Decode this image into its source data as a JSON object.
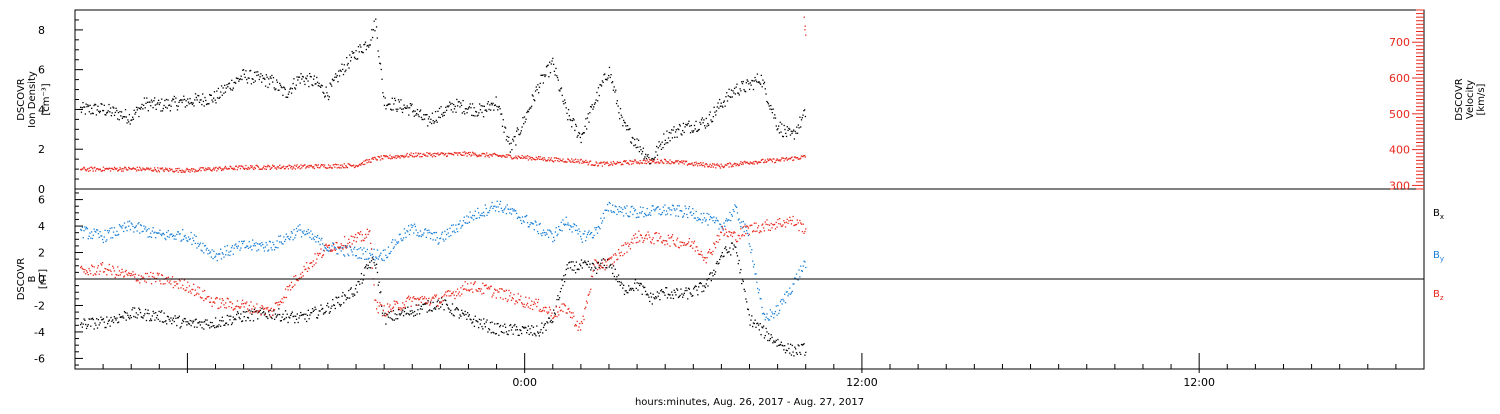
{
  "chart_data": [
    {
      "type": "scatter",
      "panel": "top",
      "y_left_label_lines": [
        "DSCOVR",
        "Ion Density"
      ],
      "y_left_unit": "[cm⁻³]",
      "y_right_label_lines": [
        "DSCOVR",
        "Velocity",
        "[km/s]"
      ],
      "ylim_left": [
        0,
        9
      ],
      "yticks_left": [
        "0",
        "2",
        "4",
        "6",
        "8"
      ],
      "ylim_right": [
        290,
        790
      ],
      "yticks_right": [
        "300",
        "400",
        "500",
        "600",
        "700"
      ],
      "x_range_hours": [
        -16,
        32
      ],
      "series": [
        {
          "axis": "left",
          "color": "#000000",
          "x_hours": [
            -15.8,
            -15,
            -14,
            -13.5,
            -13,
            -12,
            -11,
            -10.5,
            -10,
            -9,
            -8.5,
            -8,
            -7.5,
            -7,
            -6.5,
            -6,
            -5.5,
            -5.3,
            -5,
            -4.5,
            -4,
            -3.5,
            -3,
            -2.5,
            -2,
            -1.5,
            -1,
            -0.5,
            0,
            0.5,
            1,
            1.5,
            2,
            2.5,
            3,
            3.5,
            4,
            4.5,
            5,
            5.5,
            6,
            6.5,
            7,
            7.5,
            8,
            8.4,
            9,
            9.5,
            10
          ],
          "values": [
            4.0,
            4.0,
            3.6,
            4.3,
            4.2,
            4.4,
            4.6,
            5.2,
            5.7,
            5.4,
            4.8,
            5.6,
            5.4,
            4.8,
            6.0,
            6.8,
            7.5,
            8.4,
            4.4,
            4.2,
            4.0,
            3.4,
            3.8,
            4.2,
            4.1,
            3.9,
            4.4,
            2.0,
            3.5,
            5.2,
            6.3,
            3.8,
            2.6,
            4.4,
            6.0,
            3.2,
            2.3,
            1.4,
            2.6,
            3.0,
            3.2,
            3.4,
            4.3,
            5.0,
            5.2,
            5.6,
            3.2,
            2.6,
            3.8
          ]
        },
        {
          "axis": "right",
          "color": "#e8281e",
          "x_hours": [
            -15.8,
            -14,
            -12,
            -10,
            -8,
            -6,
            -5.3,
            -4,
            -2,
            0,
            1,
            2,
            2.5,
            3,
            4,
            5,
            6,
            7,
            8,
            9,
            10
          ],
          "values": [
            345,
            346,
            342,
            350,
            352,
            356,
            375,
            385,
            388,
            378,
            372,
            368,
            360,
            360,
            366,
            368,
            360,
            354,
            365,
            370,
            380
          ]
        }
      ]
    },
    {
      "type": "scatter",
      "panel": "bottom",
      "y_label_lines": [
        "DSCOVR",
        "B",
        "[nT]"
      ],
      "ylim": [
        -6.8,
        6.8
      ],
      "yticks": [
        "-6",
        "-4",
        "-2",
        "0",
        "2",
        "4",
        "6"
      ],
      "zero_line": true,
      "x_range_hours": [
        -16,
        32
      ],
      "xticks": [
        {
          "hours": 12,
          "label": "12:00"
        },
        {
          "hours": 0,
          "label": "0:00"
        },
        {
          "hours": 24,
          "label": "12:00"
        }
      ],
      "xlabel": "hours:minutes, Aug. 26, 2017 - Aug. 27, 2017",
      "series": [
        {
          "name": "Bx",
          "color": "#000000",
          "x_hours": [
            -15.8,
            -15,
            -14,
            -13,
            -12,
            -11,
            -10,
            -9,
            -8,
            -7,
            -6,
            -5.5,
            -5.3,
            -5,
            -4,
            -3,
            -2,
            -1,
            0,
            0.5,
            1,
            1.5,
            2,
            2.5,
            3,
            3.5,
            4,
            4.5,
            5,
            5.5,
            6,
            6.5,
            7,
            7.5,
            8,
            8.5,
            9,
            9.5,
            10
          ],
          "values": [
            -3.4,
            -3.3,
            -2.6,
            -2.8,
            -3.4,
            -3.3,
            -2.8,
            -2.6,
            -3.0,
            -2.2,
            -0.8,
            1.2,
            1.2,
            -3.0,
            -2.4,
            -1.8,
            -3.0,
            -3.8,
            -3.9,
            -4.0,
            -3.0,
            0.8,
            1.0,
            0.8,
            1.3,
            -0.8,
            -0.4,
            -1.5,
            -1.0,
            -1.2,
            -1.0,
            -0.4,
            1.8,
            2.5,
            -3.0,
            -4.0,
            -4.8,
            -5.4,
            -5.3
          ]
        },
        {
          "name": "By",
          "color": "#1a7fd4",
          "x_hours": [
            -15.8,
            -15,
            -14,
            -13,
            -12,
            -11,
            -10,
            -9,
            -8,
            -7,
            -6,
            -5,
            -4.5,
            -4,
            -3,
            -2,
            -1,
            0,
            0.5,
            1,
            1.5,
            2,
            2.5,
            3,
            4,
            5,
            6,
            7,
            7.5,
            8,
            8.5,
            9,
            9.5,
            10
          ],
          "values": [
            3.6,
            3.2,
            4.0,
            3.3,
            3.3,
            1.8,
            2.5,
            2.5,
            3.7,
            2.4,
            2.0,
            1.8,
            3.0,
            3.8,
            3.0,
            4.6,
            5.6,
            4.5,
            3.8,
            3.2,
            4.4,
            3.2,
            3.5,
            5.4,
            5.0,
            5.2,
            5.0,
            4.0,
            5.2,
            3.0,
            -3.0,
            -2.4,
            -0.6,
            1.3
          ]
        },
        {
          "name": "Bz",
          "color": "#e8281e",
          "x_hours": [
            -15.8,
            -15,
            -14,
            -13,
            -12,
            -11,
            -10,
            -9,
            -8,
            -7,
            -6,
            -5.5,
            -5.3,
            -5,
            -4,
            -3,
            -2,
            -1,
            0,
            0.5,
            1,
            1.5,
            2,
            2.5,
            3,
            4,
            5,
            6,
            6.5,
            7,
            7.5,
            8,
            8.5,
            9,
            9.5,
            10
          ],
          "values": [
            0.5,
            0.8,
            0.2,
            0.0,
            -0.5,
            -1.8,
            -2.0,
            -2.5,
            0.4,
            2.4,
            3.0,
            3.4,
            -2.0,
            -2.4,
            -1.6,
            -1.6,
            -0.5,
            -1.0,
            -1.7,
            -2.0,
            -2.6,
            -2.2,
            -3.8,
            1.0,
            1.2,
            3.2,
            3.0,
            2.6,
            1.6,
            3.6,
            3.2,
            3.8,
            4.0,
            4.2,
            4.4,
            3.8
          ]
        }
      ],
      "legend_placement": "right"
    }
  ]
}
